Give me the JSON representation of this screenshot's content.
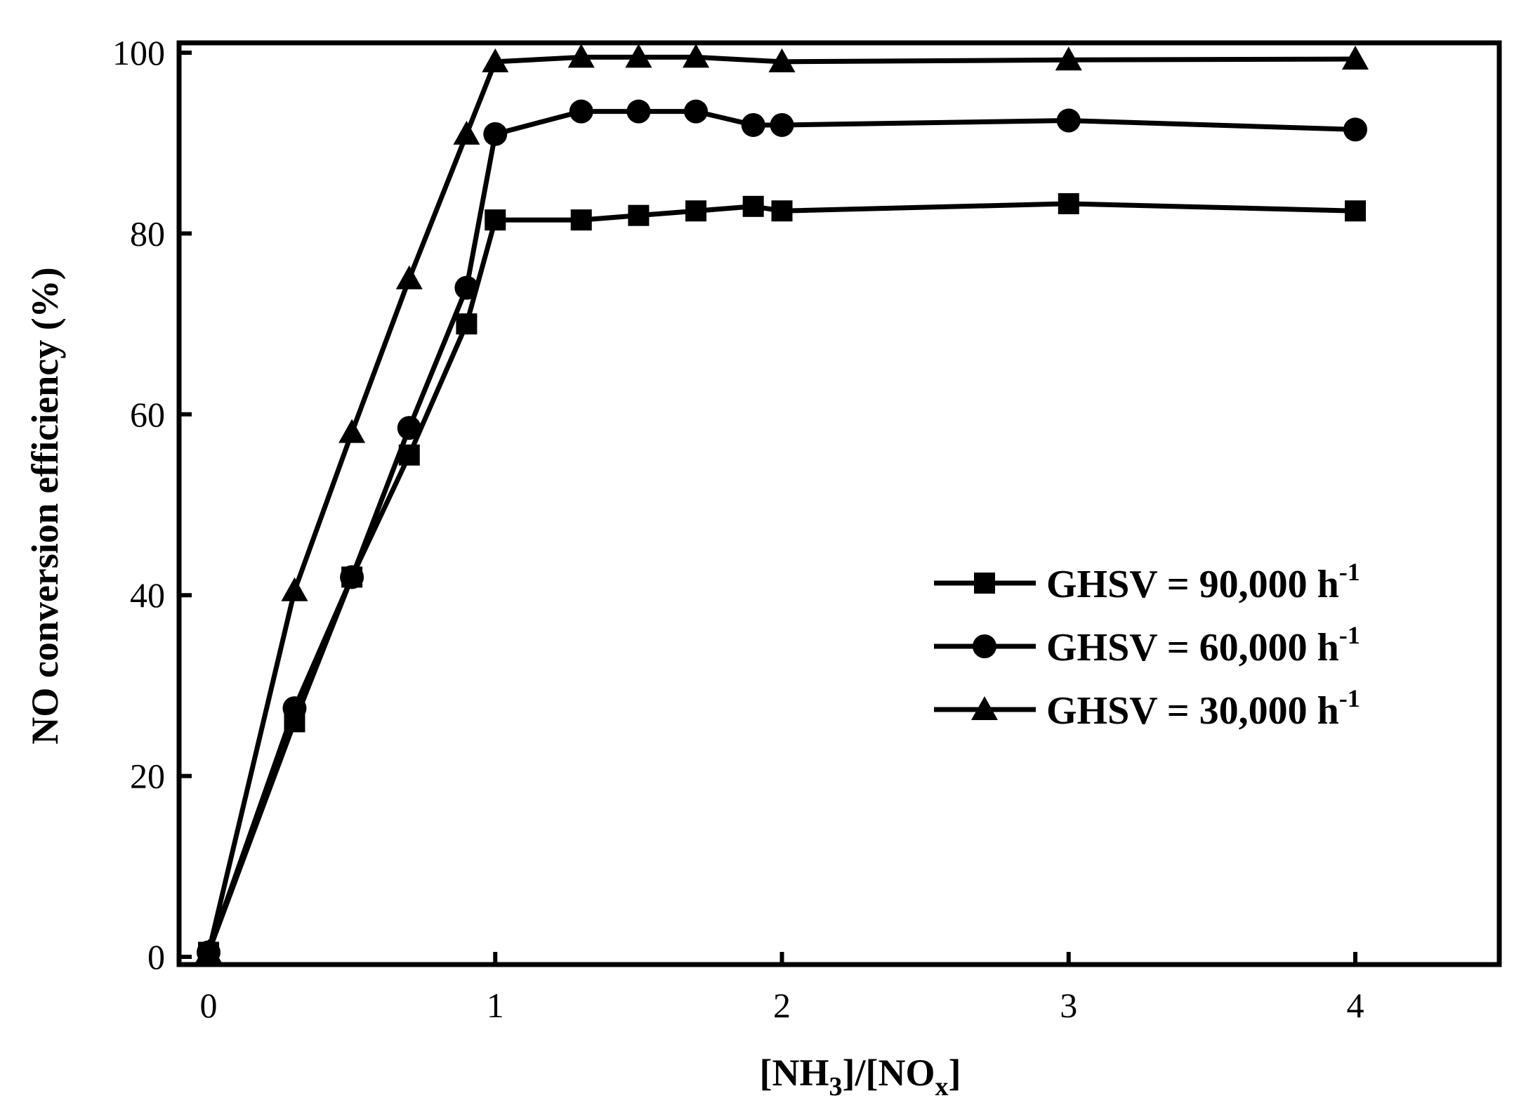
{
  "chart_data": {
    "type": "line",
    "title": "",
    "xlabel": {
      "parts": [
        {
          "t": "[NH",
          "b": true,
          "sub": false
        },
        {
          "t": "3",
          "b": true,
          "sub": true
        },
        {
          "t": "]/[NO",
          "b": true,
          "sub": false
        },
        {
          "t": "x",
          "b": true,
          "sub": true
        },
        {
          "t": "]",
          "b": true,
          "sub": false
        }
      ]
    },
    "ylabel": "NO conversion efficiency (%)",
    "xlim": [
      -0.1,
      4.5
    ],
    "ylim": [
      0,
      101
    ],
    "xticks": [
      0,
      1,
      2,
      3,
      4
    ],
    "yticks": [
      0,
      20,
      40,
      60,
      80,
      100
    ],
    "grid": false,
    "legend_position": "center-right",
    "series": [
      {
        "name": "GHSV = 90,000 h",
        "name_sup": "-1",
        "marker": "square",
        "color": "#000000",
        "x": [
          0,
          0.3,
          0.5,
          0.7,
          0.9,
          1.0,
          1.3,
          1.5,
          1.7,
          1.9,
          2.0,
          3.0,
          4.0
        ],
        "y": [
          0.5,
          26,
          42,
          55.5,
          70,
          81.5,
          81.5,
          82,
          82.5,
          83,
          82.5,
          83.3,
          82.5
        ]
      },
      {
        "name": "GHSV = 60,000 h",
        "name_sup": "-1",
        "marker": "circle",
        "color": "#000000",
        "x": [
          0,
          0.3,
          0.5,
          0.7,
          0.9,
          1.0,
          1.3,
          1.5,
          1.7,
          1.9,
          2.0,
          3.0,
          4.0
        ],
        "y": [
          0.5,
          27.5,
          42,
          58.5,
          74,
          91,
          93.5,
          93.5,
          93.5,
          92,
          92,
          92.5,
          91.5
        ]
      },
      {
        "name": "GHSV = 30,000 h",
        "name_sup": "-1",
        "marker": "triangle",
        "color": "#000000",
        "x": [
          0,
          0.3,
          0.5,
          0.7,
          0.9,
          1.0,
          1.3,
          1.5,
          1.7,
          2.0,
          3.0,
          4.0
        ],
        "y": [
          0.5,
          40.5,
          58,
          75,
          91,
          99,
          99.5,
          99.5,
          99.5,
          99,
          99.2,
          99.3
        ]
      }
    ]
  }
}
